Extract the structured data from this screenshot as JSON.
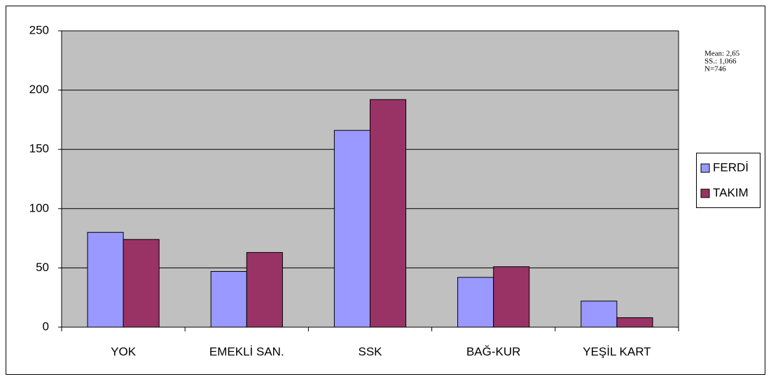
{
  "chart_data": {
    "type": "bar",
    "categories": [
      "YOK",
      "EMEKLİ SAN.",
      "SSK",
      "BAĞ-KUR",
      "YEŞİL KART"
    ],
    "series": [
      {
        "name": "FERDİ",
        "color": "#9999ff",
        "values": [
          80,
          47,
          166,
          42,
          22
        ]
      },
      {
        "name": "TAKIM",
        "color": "#993366",
        "values": [
          74,
          63,
          192,
          51,
          8
        ]
      }
    ],
    "ylim": [
      0,
      250
    ],
    "yticks": [
      0,
      50,
      100,
      150,
      200,
      250
    ],
    "grid": true,
    "legend": "right",
    "annotations": [
      "Mean: 2,65",
      "SS.: 1,066",
      "N=746"
    ]
  }
}
